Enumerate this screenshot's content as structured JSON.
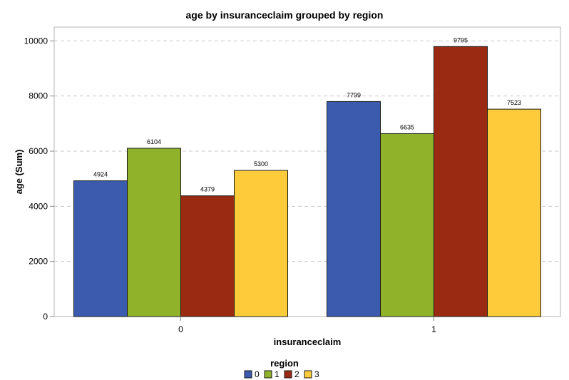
{
  "chart_data": {
    "type": "bar",
    "title": "age by insuranceclaim grouped by region",
    "xlabel": "insuranceclaim",
    "ylabel": "age (Sum)",
    "categories": [
      "0",
      "1"
    ],
    "ylim": [
      0,
      10500
    ],
    "yticks": [
      0,
      2000,
      4000,
      6000,
      8000,
      10000
    ],
    "grid": true,
    "legend_title": "region",
    "legend_position": "bottom-center",
    "series": [
      {
        "name": "0",
        "color": "#3C5BAE",
        "values": [
          4924,
          7799
        ]
      },
      {
        "name": "1",
        "color": "#8FB22A",
        "values": [
          6104,
          6635
        ]
      },
      {
        "name": "2",
        "color": "#9B2A12",
        "values": [
          4379,
          9795
        ]
      },
      {
        "name": "3",
        "color": "#FECB3A",
        "values": [
          5300,
          7523
        ]
      }
    ]
  }
}
